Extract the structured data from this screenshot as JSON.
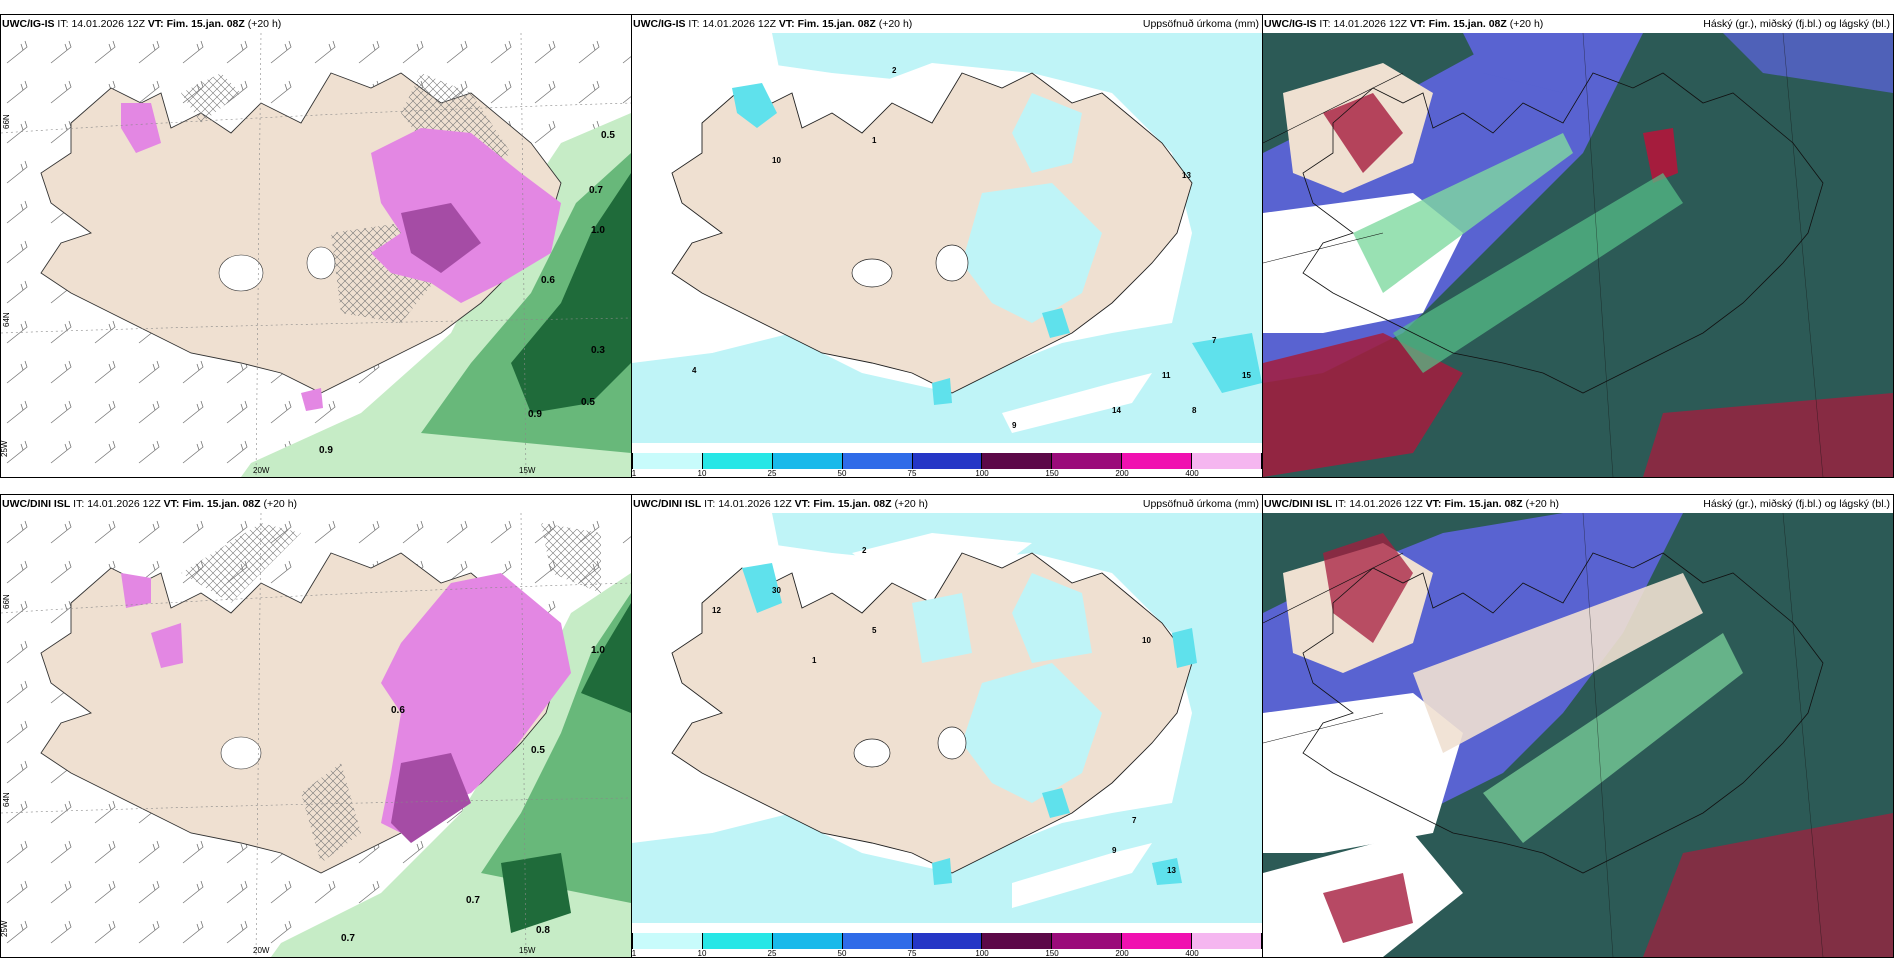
{
  "panels": {
    "igis_precip": {
      "model": "UWC/IG-IS",
      "it_label": "IT:",
      "it_value": "14.01.2026 12Z",
      "vt_label": "VT:",
      "vt_value": "Fim. 15.jan. 08Z",
      "lead": "(+20 h)",
      "lat_66": "66N",
      "lat_64": "64N",
      "lon_25": "25W",
      "lon_20": "20W",
      "lon_15": "15W",
      "value_labels": [
        "0.5",
        "0.9",
        "0.3",
        "1.0",
        "0.6",
        "0.7"
      ]
    },
    "igis_accum": {
      "model": "UWC/IG-IS",
      "it_label": "IT:",
      "it_value": "14.01.2026 12Z",
      "vt_label": "VT:",
      "vt_value": "Fim. 15.jan. 08Z",
      "lead": "(+20 h)",
      "right_title": "Uppsöfnuð úrkoma (mm)",
      "value_labels": [
        "2",
        "1",
        "10",
        "4",
        "14",
        "15",
        "11",
        "9",
        "7",
        "8",
        "13"
      ]
    },
    "igis_cloud": {
      "model": "UWC/IG-IS",
      "it_label": "IT:",
      "it_value": "14.01.2026 12Z",
      "vt_label": "VT:",
      "vt_value": "Fim. 15.jan. 08Z",
      "lead": "(+20 h)",
      "right_title": "Háský (gr.), miðský (fj.bl.) og lágský (bl.)"
    },
    "dini_precip": {
      "model": "UWC/DINI ISL",
      "it_label": "IT:",
      "it_value": "14.01.2026 12Z",
      "vt_label": "VT:",
      "vt_value": "Fim. 15.jan. 08Z",
      "lead": "(+20 h)",
      "lat_66": "66N",
      "lat_64": "64N",
      "lon_25": "25W",
      "lon_20": "20W",
      "lon_15": "15W",
      "value_labels": [
        "0.7",
        "0.8",
        "1.0",
        "0.6",
        "0.5"
      ]
    },
    "dini_accum": {
      "model": "UWC/DINI ISL",
      "it_label": "IT:",
      "it_value": "14.01.2026 12Z",
      "vt_label": "VT:",
      "vt_value": "Fim. 15.jan. 08Z",
      "lead": "(+20 h)",
      "right_title": "Uppsöfnuð úrkoma (mm)",
      "value_labels": [
        "2",
        "1",
        "5",
        "10",
        "30",
        "12",
        "13",
        "9",
        "7"
      ]
    },
    "dini_cloud": {
      "model": "UWC/DINI ISL",
      "it_label": "IT:",
      "it_value": "14.01.2026 12Z",
      "vt_label": "VT:",
      "vt_value": "Fim. 15.jan. 08Z",
      "lead": "(+20 h)",
      "right_title": "Háský (gr.), miðský (fj.bl.) og lágský (bl.)"
    }
  },
  "colorbar": {
    "ticks": [
      "1",
      "10",
      "25",
      "50",
      "75",
      "100",
      "150",
      "200",
      "400"
    ],
    "colors": [
      "#c8fbfb",
      "#27e6e6",
      "#19b9ea",
      "#2f6be8",
      "#2536c6",
      "#5c0848",
      "#9a0a7a",
      "#f010b0",
      "#f5b6f0"
    ]
  },
  "colors": {
    "land": "#efe0d1",
    "sea_light_cyan": "#bff4f7",
    "cyan": "#5fe1ec",
    "green_light": "#c6ecc6",
    "green_dark": "#1f6b3a",
    "magenta": "#e387e3",
    "cloud_blue": "#5963d1",
    "cloud_teal": "#2c5a56",
    "cloud_red": "#a51c3d"
  }
}
